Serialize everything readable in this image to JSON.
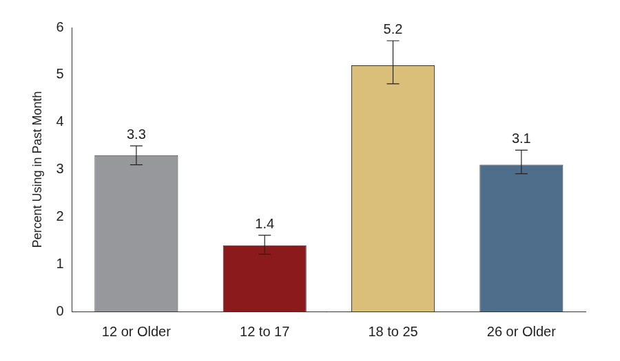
{
  "chart_data": {
    "type": "bar",
    "y_label": "Percent Using in Past Month",
    "categories": [
      "12 or Older",
      "12 to 17",
      "18 to 25",
      "26 or Older"
    ],
    "values": [
      3.3,
      1.4,
      5.2,
      3.1
    ],
    "error_lower": [
      3.1,
      1.21,
      4.81,
      2.91
    ],
    "error_upper": [
      3.5,
      1.61,
      5.72,
      3.41
    ],
    "colors": [
      "#97989b",
      "#8b1a1d",
      "#d9bf7a",
      "#4f6e8c"
    ],
    "ylim": [
      0,
      6
    ],
    "yticks": [
      0,
      1,
      2,
      3,
      4,
      5,
      6
    ],
    "grid": false,
    "data_labels": true
  }
}
